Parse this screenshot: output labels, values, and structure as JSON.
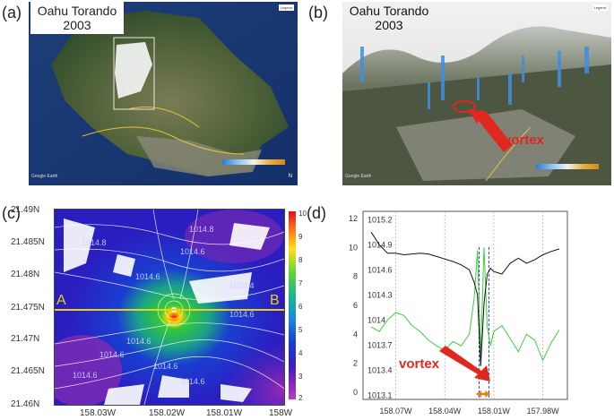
{
  "panels": {
    "a": {
      "letter": "(a)",
      "title_line1": "Oahu Torando",
      "title_line2": "2003",
      "legend": "Legend",
      "credit": "Google Earth",
      "north": "N"
    },
    "b": {
      "letter": "(b)",
      "title_line1": "Oahu Torando",
      "title_line2": "2003",
      "legend": "Legend",
      "credit": "Google Earth",
      "annotation": "vortex"
    },
    "c": {
      "letter": "(c)",
      "y_ticks": [
        "21.49N",
        "21.485N",
        "21.48N",
        "21.475N",
        "21.47N",
        "21.465N",
        "21.46N"
      ],
      "x_ticks": [
        "158.03W",
        "158.02W",
        "158.01W",
        "158W"
      ],
      "colorbar_ticks": [
        "10",
        "9",
        "8",
        "7",
        "6",
        "5",
        "4",
        "3",
        "2"
      ],
      "section_start": "A",
      "section_end": "B",
      "contour_labels": [
        "1014.8",
        "1014.6",
        "1014.6",
        "1014.4",
        "1014.6",
        "1014.6",
        "1014.6",
        "1014.6",
        "1014.6",
        "1014.6",
        "1014.8"
      ]
    },
    "d": {
      "letter": "(d)",
      "left_ticks": [
        "12",
        "10",
        "8",
        "6",
        "4",
        "2",
        "0"
      ],
      "right_ticks": [
        "1015.2",
        "1014.9",
        "1014.6",
        "1014.3",
        "1014",
        "1013.7",
        "1013.4",
        "1013.1"
      ],
      "x_ticks": [
        "158.07W",
        "158.04W",
        "158.01W",
        "157.98W"
      ],
      "annotation": "vortex"
    }
  },
  "colors": {
    "wind_line": "#3ecf3e",
    "pressure_line": "#111111",
    "vortex_text": "#e0281e",
    "section_line": "#e8d21a"
  },
  "chart_data": {
    "type": "line",
    "x": [
      -158.085,
      -158.08,
      -158.075,
      -158.07,
      -158.065,
      -158.06,
      -158.055,
      -158.05,
      -158.045,
      -158.04,
      -158.035,
      -158.03,
      -158.025,
      -158.022,
      -158.02,
      -158.018,
      -158.016,
      -158.014,
      -158.012,
      -158.01,
      -158.005,
      -158.0,
      -157.995,
      -157.99,
      -157.985,
      -157.98,
      -157.975,
      -157.97
    ],
    "series": [
      {
        "axis": "left",
        "values": [
          4.5,
          4.2,
          5.0,
          5.5,
          5.3,
          4.6,
          4.2,
          3.6,
          3.2,
          2.9,
          3.5,
          3.2,
          4.0,
          6.5,
          9.8,
          2.5,
          10.0,
          4.5,
          3.2,
          4.2,
          4.6,
          3.7,
          2.8,
          4.0,
          3.6,
          2.2,
          3.4,
          4.3
        ]
      },
      {
        "axis": "right",
        "values": [
          1015.05,
          1014.9,
          1014.8,
          1014.8,
          1014.78,
          1014.79,
          1014.8,
          1014.79,
          1014.76,
          1014.73,
          1014.7,
          1014.66,
          1014.6,
          1014.45,
          1014.3,
          1013.45,
          1014.2,
          1014.55,
          1014.62,
          1014.58,
          1014.55,
          1014.68,
          1014.74,
          1014.68,
          1014.72,
          1014.78,
          1014.82,
          1014.85
        ]
      }
    ],
    "left_ylim": [
      -0.5,
      12.5
    ],
    "right_ylim": [
      1013.05,
      1015.3
    ],
    "xlim": [
      -158.09,
      -157.965
    ],
    "grid": true
  }
}
